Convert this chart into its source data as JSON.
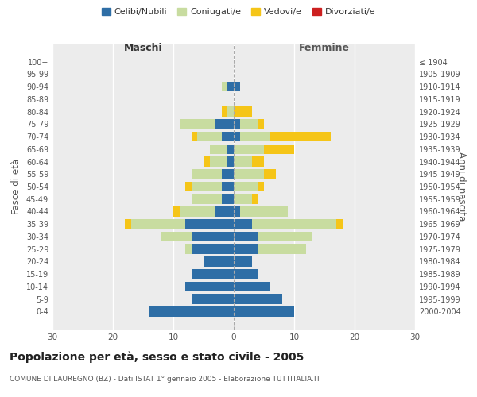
{
  "age_groups": [
    "0-4",
    "5-9",
    "10-14",
    "15-19",
    "20-24",
    "25-29",
    "30-34",
    "35-39",
    "40-44",
    "45-49",
    "50-54",
    "55-59",
    "60-64",
    "65-69",
    "70-74",
    "75-79",
    "80-84",
    "85-89",
    "90-94",
    "95-99",
    "100+"
  ],
  "birth_years": [
    "2000-2004",
    "1995-1999",
    "1990-1994",
    "1985-1989",
    "1980-1984",
    "1975-1979",
    "1970-1974",
    "1965-1969",
    "1960-1964",
    "1955-1959",
    "1950-1954",
    "1945-1949",
    "1940-1944",
    "1935-1939",
    "1930-1934",
    "1925-1929",
    "1920-1924",
    "1915-1919",
    "1910-1914",
    "1905-1909",
    "≤ 1904"
  ],
  "maschi": {
    "celibi": [
      14,
      7,
      8,
      7,
      5,
      7,
      7,
      8,
      3,
      2,
      2,
      2,
      1,
      1,
      2,
      3,
      0,
      0,
      1,
      0,
      0
    ],
    "coniugati": [
      0,
      0,
      0,
      0,
      0,
      1,
      5,
      9,
      6,
      5,
      5,
      5,
      3,
      3,
      4,
      6,
      1,
      0,
      1,
      0,
      0
    ],
    "vedovi": [
      0,
      0,
      0,
      0,
      0,
      0,
      0,
      1,
      1,
      0,
      1,
      0,
      1,
      0,
      1,
      0,
      1,
      0,
      0,
      0,
      0
    ],
    "divorziati": [
      0,
      0,
      0,
      0,
      0,
      0,
      0,
      0,
      0,
      0,
      0,
      0,
      0,
      0,
      0,
      0,
      0,
      0,
      0,
      0,
      0
    ]
  },
  "femmine": {
    "nubili": [
      10,
      8,
      6,
      4,
      3,
      4,
      4,
      3,
      1,
      0,
      0,
      0,
      0,
      0,
      1,
      1,
      0,
      0,
      1,
      0,
      0
    ],
    "coniugate": [
      0,
      0,
      0,
      0,
      0,
      8,
      9,
      14,
      8,
      3,
      4,
      5,
      3,
      5,
      5,
      3,
      0,
      0,
      0,
      0,
      0
    ],
    "vedove": [
      0,
      0,
      0,
      0,
      0,
      0,
      0,
      1,
      0,
      1,
      1,
      2,
      2,
      5,
      10,
      1,
      3,
      0,
      0,
      0,
      0
    ],
    "divorziate": [
      0,
      0,
      0,
      0,
      0,
      0,
      0,
      0,
      0,
      0,
      0,
      0,
      0,
      0,
      0,
      0,
      0,
      0,
      0,
      0,
      0
    ]
  },
  "colors": {
    "celibi": "#2E6EA6",
    "coniugati": "#C8DCA0",
    "vedovi": "#F5C518",
    "divorziati": "#CC2020"
  },
  "title": "Popolazione per età, sesso e stato civile - 2005",
  "subtitle": "COMUNE DI LAUREGNO (BZ) - Dati ISTAT 1° gennaio 2005 - Elaborazione TUTTITALIA.IT",
  "xlabel_left": "Maschi",
  "xlabel_right": "Femmine",
  "ylabel_left": "Fasce di età",
  "ylabel_right": "Anni di nascita",
  "xlim": 30,
  "background_color": "#ffffff",
  "plot_bg_color": "#ececec",
  "grid_color": "#ffffff",
  "legend_labels": [
    "Celibi/Nubili",
    "Coniugati/e",
    "Vedovi/e",
    "Divorziati/e"
  ]
}
